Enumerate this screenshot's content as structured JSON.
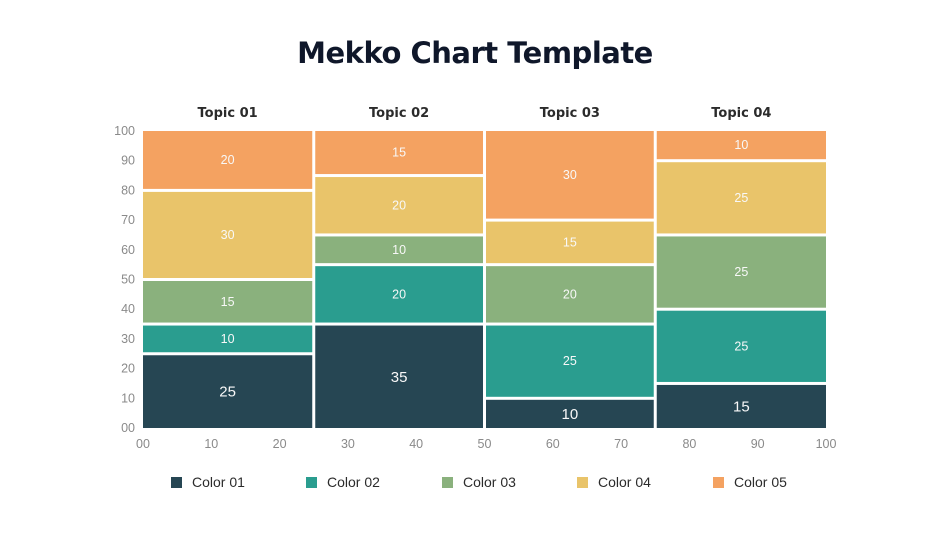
{
  "chart_data": {
    "type": "mekko",
    "title": "Mekko Chart Template",
    "x_ticks": [
      "00",
      "10",
      "20",
      "30",
      "40",
      "50",
      "60",
      "70",
      "80",
      "90",
      "100"
    ],
    "y_ticks": [
      "00",
      "10",
      "20",
      "30",
      "40",
      "50",
      "60",
      "70",
      "80",
      "90",
      "100"
    ],
    "xlim": [
      0,
      100
    ],
    "ylim": [
      0,
      100
    ],
    "legend_position": "bottom",
    "columns": [
      {
        "label": "Topic 01",
        "x_start": 0,
        "x_end": 25,
        "values": [
          25,
          10,
          15,
          30,
          20
        ]
      },
      {
        "label": "Topic 02",
        "x_start": 25,
        "x_end": 50,
        "values": [
          35,
          20,
          10,
          20,
          15
        ]
      },
      {
        "label": "Topic 03",
        "x_start": 50,
        "x_end": 75,
        "values": [
          10,
          25,
          20,
          15,
          30
        ]
      },
      {
        "label": "Topic 04",
        "x_start": 75,
        "x_end": 100,
        "values": [
          15,
          25,
          25,
          25,
          10
        ]
      }
    ],
    "series": [
      {
        "name": "Color 01",
        "color": "#264653"
      },
      {
        "name": "Color 02",
        "color": "#2a9d8f"
      },
      {
        "name": "Color 03",
        "color": "#8ab17d"
      },
      {
        "name": "Color 04",
        "color": "#e9c46a"
      },
      {
        "name": "Color 05",
        "color": "#f4a261"
      }
    ]
  }
}
